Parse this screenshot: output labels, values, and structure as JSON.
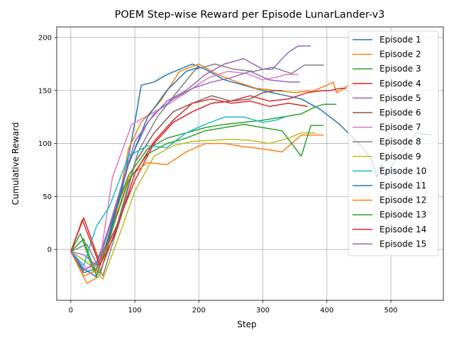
{
  "chart_data": {
    "type": "line",
    "title": "POEM Step-wise Reward per Episode LunarLander-v3",
    "xlabel": "Step",
    "ylabel": "Cumulative Reward",
    "xlim": [
      -22,
      582
    ],
    "ylim": [
      -48,
      210
    ],
    "xticks": [
      0,
      100,
      200,
      300,
      400,
      500
    ],
    "yticks": [
      0,
      50,
      100,
      150,
      200
    ],
    "grid": true,
    "legend_position": "upper-right",
    "series": [
      {
        "name": "Episode 1",
        "color": "#1f77b4",
        "x": [
          0,
          20,
          40,
          60,
          80,
          100,
          110,
          130,
          150,
          170,
          190,
          210,
          240,
          270,
          300,
          330,
          360,
          390,
          420,
          450,
          470,
          478,
          485,
          490,
          500,
          540,
          565
        ],
        "y": [
          -2,
          -22,
          -18,
          12,
          55,
          120,
          155,
          158,
          165,
          170,
          175,
          170,
          160,
          155,
          150,
          146,
          142,
          132,
          118,
          100,
          85,
          68,
          80,
          70,
          78,
          110,
          108
        ]
      },
      {
        "name": "Episode 2",
        "color": "#ff7f0e",
        "x": [
          0,
          25,
          45,
          70,
          90,
          110,
          140,
          170,
          200,
          230,
          260,
          290,
          320,
          350,
          380,
          400,
          410,
          415,
          435,
          455
        ],
        "y": [
          -2,
          -32,
          -25,
          30,
          95,
          120,
          140,
          168,
          175,
          165,
          158,
          152,
          150,
          148,
          150,
          155,
          158,
          148,
          155,
          155
        ]
      },
      {
        "name": "Episode 3",
        "color": "#2ca02c",
        "x": [
          0,
          15,
          35,
          60,
          90,
          120,
          150,
          180,
          210,
          240,
          270,
          300,
          330,
          360,
          380,
          395,
          410,
          415
        ],
        "y": [
          -2,
          15,
          -20,
          20,
          70,
          95,
          105,
          110,
          115,
          118,
          120,
          122,
          125,
          128,
          134,
          137,
          137,
          137
        ]
      },
      {
        "name": "Episode 4",
        "color": "#d62728",
        "x": [
          0,
          20,
          45,
          70,
          100,
          130,
          160,
          190,
          220,
          250,
          280,
          310,
          340,
          370,
          395,
          405,
          420,
          430
        ],
        "y": [
          -2,
          30,
          -12,
          20,
          65,
          100,
          120,
          130,
          138,
          140,
          145,
          140,
          142,
          148,
          150,
          150,
          152,
          152
        ]
      },
      {
        "name": "Episode 5",
        "color": "#9467bd",
        "x": [
          0,
          20,
          40,
          60,
          90,
          120,
          150,
          180,
          210,
          240,
          270,
          300,
          315,
          330,
          340,
          355,
          375
        ],
        "y": [
          -2,
          -5,
          -15,
          22,
          82,
          120,
          140,
          150,
          165,
          175,
          180,
          170,
          170,
          180,
          186,
          192,
          192
        ]
      },
      {
        "name": "Episode 6",
        "color": "#8c564b",
        "x": [
          0,
          20,
          45,
          70,
          100,
          130,
          160,
          190,
          220,
          250,
          280,
          300,
          320,
          330
        ],
        "y": [
          -2,
          -10,
          -22,
          18,
          82,
          110,
          130,
          138,
          145,
          140,
          142,
          148,
          150,
          150
        ]
      },
      {
        "name": "Episode 7",
        "color": "#e377c2",
        "x": [
          0,
          25,
          45,
          65,
          95,
          125,
          155,
          185,
          215,
          245,
          275,
          300,
          325,
          335,
          355
        ],
        "y": [
          -2,
          -18,
          -12,
          68,
          118,
          128,
          138,
          150,
          162,
          168,
          166,
          160,
          163,
          165,
          165
        ]
      },
      {
        "name": "Episode 8",
        "color": "#7f7f7f",
        "x": [
          0,
          25,
          50,
          75,
          105,
          135,
          165,
          195,
          225,
          255,
          285,
          315,
          335,
          345,
          365,
          395
        ],
        "y": [
          -2,
          5,
          -25,
          25,
          92,
          125,
          148,
          170,
          175,
          170,
          168,
          172,
          168,
          166,
          174,
          174
        ]
      },
      {
        "name": "Episode 9",
        "color": "#bcbd22",
        "x": [
          0,
          25,
          50,
          75,
          100,
          130,
          160,
          190,
          220,
          250,
          280,
          310,
          340,
          360,
          383
        ],
        "y": [
          -2,
          -12,
          -28,
          12,
          55,
          88,
          98,
          102,
          103,
          104,
          103,
          100,
          105,
          110,
          110
        ]
      },
      {
        "name": "Episode 10",
        "color": "#17becf",
        "x": [
          0,
          20,
          40,
          60,
          90,
          120,
          150,
          180,
          210,
          240,
          270,
          300,
          320,
          335
        ],
        "y": [
          -2,
          -15,
          22,
          40,
          88,
          98,
          96,
          110,
          118,
          125,
          125,
          120,
          122,
          125
        ]
      },
      {
        "name": "Episode 11",
        "color": "#1f77b4",
        "x": [
          0,
          20,
          40,
          60,
          90,
          120,
          150,
          180,
          200
        ],
        "y": [
          -2,
          -18,
          -26,
          15,
          80,
          125,
          150,
          168,
          172
        ]
      },
      {
        "name": "Episode 12",
        "color": "#ff7f0e",
        "x": [
          0,
          20,
          40,
          60,
          90,
          120,
          150,
          180,
          210,
          240,
          270,
          300,
          330,
          360,
          380,
          395
        ],
        "y": [
          -2,
          -25,
          -20,
          10,
          68,
          82,
          80,
          92,
          100,
          100,
          97,
          95,
          92,
          108,
          108,
          108
        ]
      },
      {
        "name": "Episode 13",
        "color": "#2ca02c",
        "x": [
          0,
          20,
          40,
          60,
          90,
          120,
          150,
          180,
          210,
          240,
          270,
          300,
          330,
          360,
          375,
          395
        ],
        "y": [
          -2,
          10,
          -25,
          10,
          65,
          90,
          100,
          105,
          112,
          115,
          118,
          115,
          112,
          88,
          117,
          117
        ]
      },
      {
        "name": "Episode 14",
        "color": "#d62728",
        "x": [
          0,
          18,
          45,
          70,
          100,
          130,
          160,
          190,
          220,
          250,
          280,
          310,
          340,
          370
        ],
        "y": [
          -2,
          28,
          -15,
          15,
          72,
          102,
          122,
          138,
          142,
          138,
          140,
          135,
          138,
          135
        ]
      },
      {
        "name": "Episode 15",
        "color": "#9467bd",
        "x": [
          0,
          20,
          45,
          70,
          100,
          130,
          160,
          190,
          220,
          250,
          280,
          310,
          340,
          358
        ],
        "y": [
          -2,
          -20,
          -10,
          40,
          102,
          128,
          142,
          152,
          158,
          162,
          168,
          160,
          158,
          158
        ]
      }
    ]
  }
}
